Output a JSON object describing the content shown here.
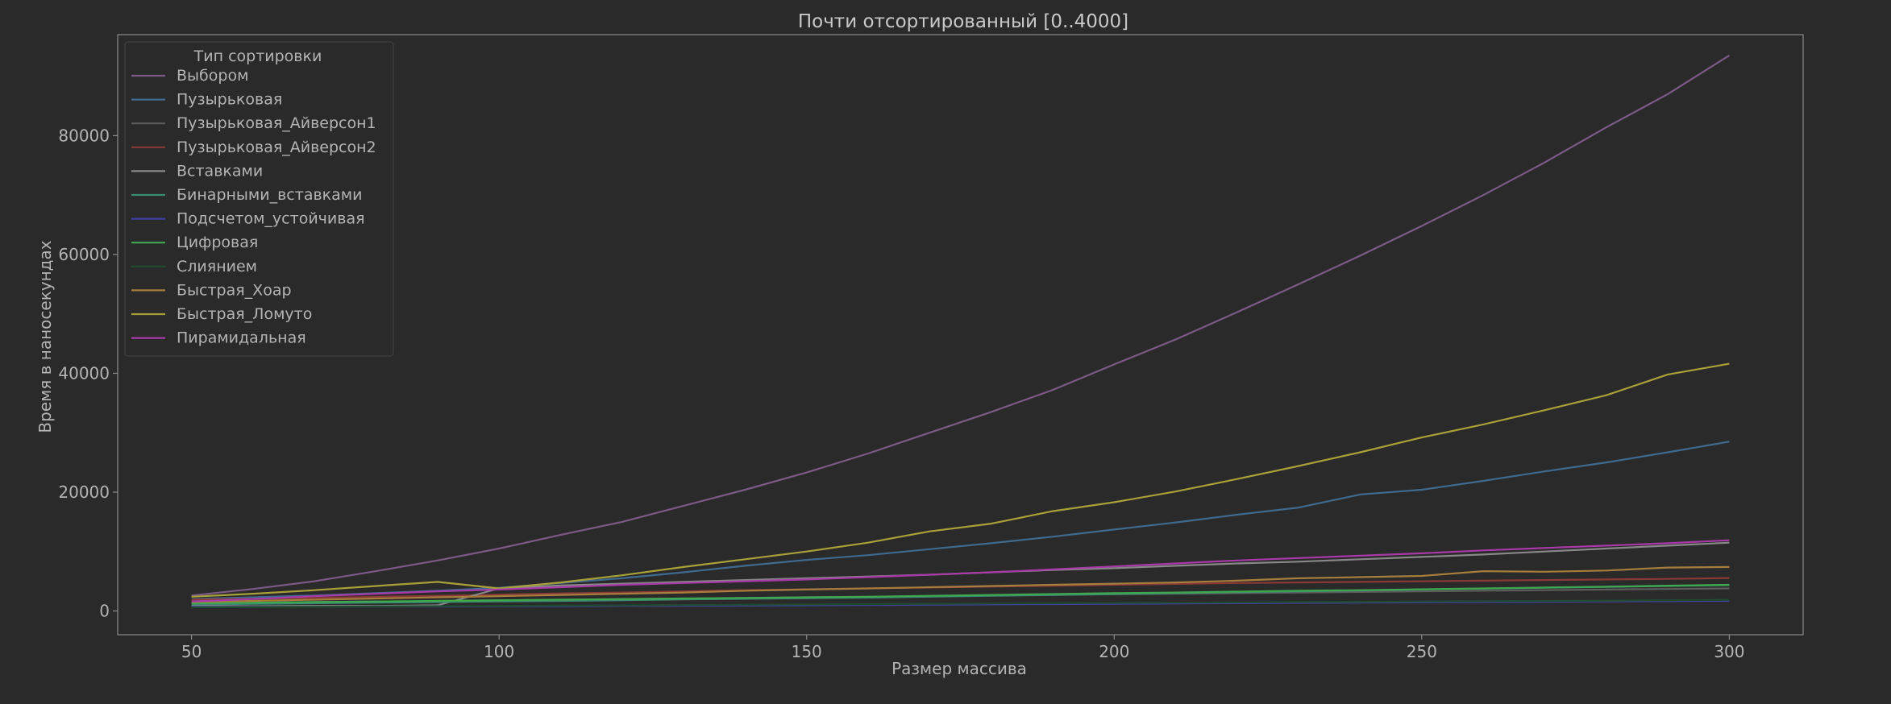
{
  "chart_data": {
    "type": "line",
    "title": "Почти отсортированный [0..4000]",
    "xlabel": "Размер массива",
    "ylabel": "Время в наносекундах",
    "xlim": [
      38,
      312
    ],
    "ylim": [
      -4000,
      97000
    ],
    "xticks": [
      50,
      100,
      150,
      200,
      250,
      300
    ],
    "yticks": [
      0,
      20000,
      40000,
      60000,
      80000
    ],
    "grid": false,
    "legend": {
      "title": "Тип сортировки",
      "placement": "top-left"
    },
    "x": [
      50,
      60,
      70,
      80,
      90,
      100,
      110,
      120,
      130,
      140,
      150,
      160,
      170,
      180,
      190,
      200,
      210,
      220,
      230,
      240,
      250,
      260,
      270,
      280,
      290,
      300
    ],
    "series": [
      {
        "name": "Выбором",
        "color": "#7b5a86",
        "values": [
          2600,
          3700,
          5000,
          6700,
          8500,
          10500,
          12800,
          15000,
          17700,
          20400,
          23300,
          26500,
          30000,
          33500,
          37200,
          41500,
          45700,
          50300,
          55000,
          59800,
          64800,
          70000,
          75500,
          81400,
          87000,
          93500
        ]
      },
      {
        "name": "Пузырьковая",
        "color": "#3f6a8f",
        "values": [
          2000,
          2300,
          2600,
          3000,
          3400,
          3900,
          4700,
          5500,
          6500,
          7600,
          8600,
          9400,
          10400,
          11400,
          12500,
          13700,
          14900,
          16200,
          17400,
          19600,
          20400,
          21900,
          23500,
          25000,
          26700,
          28500
        ]
      },
      {
        "name": "Пузырьковая_Айверсон1",
        "color": "#5d5d5d",
        "values": [
          1300,
          1400,
          1500,
          1600,
          1700,
          1800,
          1900,
          2000,
          2100,
          2200,
          2300,
          2400,
          2500,
          2600,
          2700,
          2800,
          2900,
          3000,
          3100,
          3200,
          3300,
          3400,
          3500,
          3600,
          3700,
          3800
        ]
      },
      {
        "name": "Пузырьковая_Айверсон2",
        "color": "#8a3a36",
        "values": [
          1900,
          2050,
          2200,
          2400,
          2550,
          2750,
          2950,
          3100,
          3300,
          3500,
          3650,
          3800,
          3950,
          4100,
          4250,
          4400,
          4550,
          4700,
          4800,
          4900,
          5000,
          5100,
          5200,
          5300,
          5400,
          5550
        ]
      },
      {
        "name": "Вставками",
        "color": "#888888",
        "values": [
          900,
          800,
          850,
          850,
          950,
          3800,
          4300,
          4600,
          4900,
          5200,
          5500,
          5800,
          6100,
          6500,
          6900,
          7200,
          7600,
          8000,
          8300,
          8700,
          9100,
          9500,
          10000,
          10500,
          11000,
          11500
        ]
      },
      {
        "name": "Бинарными_вставками",
        "color": "#3a8a72",
        "values": [
          1100,
          1200,
          1300,
          1400,
          1500,
          1600,
          1700,
          1800,
          1950,
          2050,
          2150,
          2250,
          2400,
          2550,
          2700,
          2850,
          3000,
          3150,
          3300,
          3450,
          3600,
          3750,
          3900,
          4050,
          4200,
          4350
        ]
      },
      {
        "name": "Подсчетом_устойчивая",
        "color": "#4040a0",
        "values": [
          700,
          700,
          700,
          750,
          750,
          800,
          800,
          850,
          850,
          900,
          950,
          1000,
          1050,
          1100,
          1150,
          1200,
          1250,
          1300,
          1350,
          1400,
          1450,
          1500,
          1550,
          1600,
          1650,
          1700
        ]
      },
      {
        "name": "Цифровая",
        "color": "#3fa84f",
        "values": [
          1300,
          1400,
          1500,
          1600,
          1700,
          1800,
          1900,
          2000,
          2100,
          2200,
          2300,
          2400,
          2550,
          2700,
          2850,
          3000,
          3100,
          3250,
          3400,
          3500,
          3650,
          3800,
          3950,
          4100,
          4250,
          4400
        ]
      },
      {
        "name": "Слиянием",
        "color": "#1f4a2e",
        "values": [
          600,
          650,
          700,
          750,
          800,
          850,
          900,
          950,
          1000,
          1050,
          1100,
          1150,
          1200,
          1250,
          1300,
          1350,
          1400,
          1450,
          1500,
          1550,
          1600,
          1650,
          1700,
          1750,
          1800,
          1850
        ]
      },
      {
        "name": "Быстрая_Хоар",
        "color": "#a77d3e",
        "values": [
          1500,
          1700,
          1900,
          2100,
          2300,
          2500,
          2700,
          2900,
          3100,
          3400,
          3600,
          3800,
          4000,
          4200,
          4400,
          4600,
          4800,
          5100,
          5500,
          5700,
          5900,
          6700,
          6600,
          6800,
          7300,
          7400
        ]
      },
      {
        "name": "Быстрая_Ломуто",
        "color": "#a8a038",
        "values": [
          2400,
          2900,
          3500,
          4200,
          4900,
          3800,
          4800,
          6000,
          7400,
          8700,
          10000,
          11500,
          13400,
          14700,
          16800,
          18300,
          20100,
          22200,
          24400,
          26700,
          29200,
          31400,
          33800,
          36300,
          39800,
          41600
        ]
      },
      {
        "name": "Пирамидальная",
        "color": "#a83aa8",
        "values": [
          1600,
          2000,
          2500,
          2900,
          3300,
          3600,
          4000,
          4400,
          4700,
          5000,
          5300,
          5700,
          6100,
          6500,
          7000,
          7500,
          8000,
          8500,
          8900,
          9300,
          9700,
          10200,
          10600,
          11000,
          11400,
          11900
        ]
      }
    ]
  }
}
